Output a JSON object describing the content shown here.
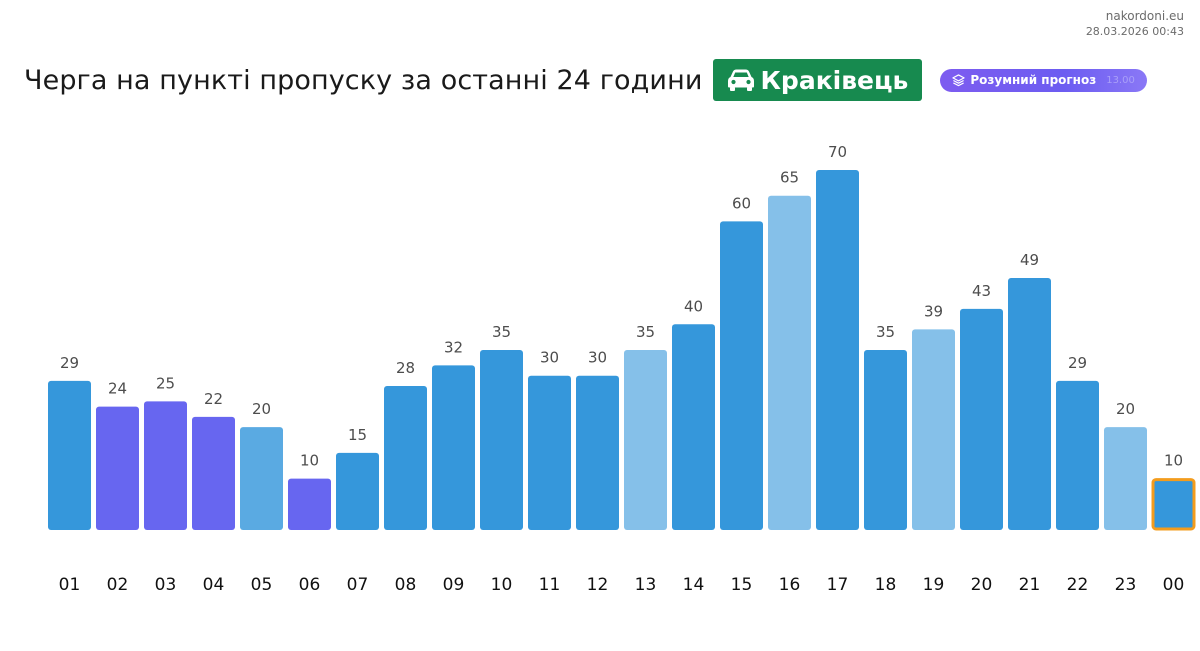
{
  "site": {
    "domain": "nakordoni.eu",
    "datetime": "28.03.2026 00:43"
  },
  "header": {
    "title": "Черга на пункті пропуску за останні 24 години",
    "place": "Краківець",
    "place_icon": "car-icon",
    "forecast_label": "Розумний прогноз",
    "forecast_icon": "layers-icon",
    "forecast_ghost": "13.00"
  },
  "colors": {
    "dark": "#3597db",
    "purple": "#6766f0",
    "light": "#85c0e9",
    "mid": "#5aaae2",
    "highlight_border": "#f39c1d",
    "badge_green": "#178a4f"
  },
  "chart_data": {
    "type": "bar",
    "categories": [
      "01",
      "02",
      "03",
      "04",
      "05",
      "06",
      "07",
      "08",
      "09",
      "10",
      "11",
      "12",
      "13",
      "14",
      "15",
      "16",
      "17",
      "18",
      "19",
      "20",
      "21",
      "22",
      "23",
      "00"
    ],
    "values": [
      29,
      24,
      25,
      22,
      20,
      10,
      15,
      28,
      32,
      35,
      30,
      30,
      35,
      40,
      60,
      65,
      70,
      35,
      39,
      43,
      49,
      29,
      20,
      10
    ],
    "bar_colors": [
      "dark",
      "purple",
      "purple",
      "purple",
      "mid",
      "purple",
      "dark",
      "dark",
      "dark",
      "dark",
      "dark",
      "dark",
      "light",
      "dark",
      "dark",
      "light",
      "dark",
      "dark",
      "light",
      "dark",
      "dark",
      "dark",
      "light",
      "dark"
    ],
    "highlighted_index": 23,
    "title": "",
    "xlabel": "",
    "ylabel": "",
    "ylim": [
      0,
      70
    ],
    "grid": false,
    "data_labels": true
  }
}
